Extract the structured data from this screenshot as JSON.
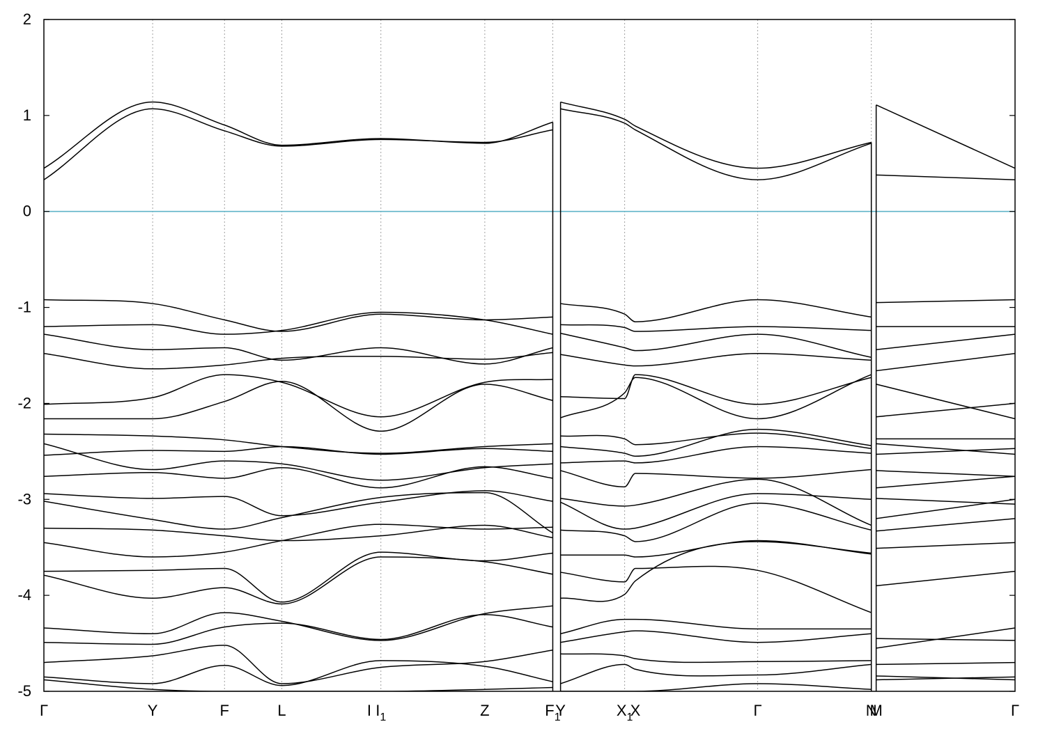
{
  "chart_data": {
    "type": "line",
    "title": "",
    "xlabel": "",
    "ylabel": "",
    "ylim": [
      -5,
      2
    ],
    "yticks": [
      -5,
      -4,
      -3,
      -2,
      -1,
      0,
      1,
      2
    ],
    "grid": "vertical dotted lines at high-symmetry points",
    "fermi_level": {
      "value": 0,
      "color": "#5fb4c8"
    },
    "line_color": "#000000",
    "kpoints": [
      {
        "x": 0.0,
        "label": "Γ",
        "sub": ""
      },
      {
        "x": 0.112,
        "label": "Y",
        "sub": ""
      },
      {
        "x": 0.186,
        "label": "F",
        "sub": ""
      },
      {
        "x": 0.245,
        "label": "L",
        "sub": ""
      },
      {
        "x": 0.335,
        "label": "I",
        "sub": ""
      },
      {
        "x": 0.347,
        "label": "I",
        "sub": "1"
      },
      {
        "x": 0.454,
        "label": "Z",
        "sub": ""
      },
      {
        "x": 0.524,
        "label": "F",
        "sub": "1"
      },
      {
        "x": 0.532,
        "label": "Y",
        "sub": ""
      },
      {
        "x": 0.598,
        "label": "X",
        "sub": "1"
      },
      {
        "x": 0.609,
        "label": "X",
        "sub": ""
      },
      {
        "x": 0.735,
        "label": "Γ",
        "sub": ""
      },
      {
        "x": 0.852,
        "label": "N",
        "sub": ""
      },
      {
        "x": 0.857,
        "label": "M",
        "sub": ""
      },
      {
        "x": 1.0,
        "label": "Γ",
        "sub": ""
      }
    ],
    "gridlines_x": [
      0.112,
      0.186,
      0.245,
      0.347,
      0.454,
      0.524,
      0.598,
      0.735,
      0.852
    ],
    "segments": [
      {
        "x": [
          0,
          0.112,
          0.186,
          0.245,
          0.347,
          0.454,
          0.524
        ],
        "bands": [
          [
            0.45,
            1.14,
            0.9,
            0.69,
            0.76,
            0.71,
            0.93
          ],
          [
            0.33,
            1.07,
            0.84,
            0.68,
            0.75,
            0.72,
            0.85
          ],
          [
            -0.92,
            -0.96,
            -1.13,
            -1.25,
            -1.07,
            -1.13,
            -1.1
          ],
          [
            -1.2,
            -1.18,
            -1.28,
            -1.24,
            -1.05,
            -1.13,
            -1.28
          ],
          [
            -1.28,
            -1.44,
            -1.42,
            -1.55,
            -1.42,
            -1.59,
            -1.42
          ],
          [
            -1.48,
            -1.64,
            -1.6,
            -1.53,
            -1.51,
            -1.54,
            -1.47
          ],
          [
            -2.01,
            -1.94,
            -1.7,
            -1.78,
            -2.14,
            -1.78,
            -1.75
          ],
          [
            -2.16,
            -2.16,
            -1.98,
            -1.77,
            -2.29,
            -1.8,
            -1.97
          ],
          [
            -2.32,
            -2.34,
            -2.38,
            -2.45,
            -2.52,
            -2.45,
            -2.42
          ],
          [
            -2.42,
            -2.69,
            -2.6,
            -2.63,
            -2.8,
            -2.67,
            -2.63
          ],
          [
            -2.54,
            -2.49,
            -2.5,
            -2.45,
            -2.53,
            -2.47,
            -2.5
          ],
          [
            -2.76,
            -2.72,
            -2.78,
            -2.67,
            -2.88,
            -2.66,
            -2.78
          ],
          [
            -2.94,
            -2.99,
            -2.97,
            -3.17,
            -3.03,
            -2.91,
            -3.02
          ],
          [
            -3.02,
            -3.21,
            -3.31,
            -3.19,
            -2.98,
            -2.93,
            -3.35
          ],
          [
            -3.3,
            -3.32,
            -3.38,
            -3.43,
            -3.38,
            -3.27,
            -3.4
          ],
          [
            -3.45,
            -3.6,
            -3.55,
            -3.43,
            -3.26,
            -3.31,
            -3.29
          ],
          [
            -3.75,
            -3.74,
            -3.72,
            -4.07,
            -3.55,
            -3.64,
            -3.56
          ],
          [
            -3.79,
            -4.03,
            -3.92,
            -4.09,
            -3.6,
            -3.65,
            -3.78
          ],
          [
            -4.34,
            -4.4,
            -4.18,
            -4.27,
            -4.47,
            -4.19,
            -4.11
          ],
          [
            -4.49,
            -4.51,
            -4.33,
            -4.29,
            -4.46,
            -4.2,
            -4.33
          ],
          [
            -4.7,
            -4.63,
            -4.52,
            -4.92,
            -4.75,
            -4.69,
            -4.57
          ],
          [
            -4.85,
            -4.92,
            -4.73,
            -4.94,
            -4.68,
            -4.74,
            -4.9
          ],
          [
            -4.88,
            -4.98,
            -5.0,
            -5.0,
            -5.0,
            -4.98,
            -4.96
          ]
        ]
      },
      {
        "x": [
          0.532,
          0.598,
          0.609,
          0.735,
          0.852
        ],
        "bands": [
          [
            1.14,
            0.96,
            0.89,
            0.45,
            0.72
          ],
          [
            1.07,
            0.92,
            0.85,
            0.33,
            0.71
          ],
          [
            -0.96,
            -1.07,
            -1.15,
            -0.92,
            -1.1
          ],
          [
            -1.18,
            -1.21,
            -1.25,
            -1.2,
            -1.24
          ],
          [
            -1.27,
            -1.42,
            -1.45,
            -1.28,
            -1.52
          ],
          [
            -1.49,
            -1.6,
            -1.61,
            -1.48,
            -1.55
          ],
          [
            -1.93,
            -1.95,
            -1.7,
            -2.01,
            -1.73
          ],
          [
            -2.15,
            -1.89,
            -1.73,
            -2.16,
            -1.7
          ],
          [
            -2.34,
            -2.37,
            -2.43,
            -2.31,
            -2.47
          ],
          [
            -2.62,
            -2.6,
            -2.62,
            -2.45,
            -2.52
          ],
          [
            -2.45,
            -2.52,
            -2.55,
            -2.27,
            -2.44
          ],
          [
            -2.7,
            -2.87,
            -2.73,
            -2.78,
            -2.69
          ],
          [
            -2.99,
            -3.07,
            -3.06,
            -2.79,
            -3.27
          ],
          [
            -3.03,
            -3.31,
            -3.3,
            -2.94,
            -3.0
          ],
          [
            -3.32,
            -3.38,
            -3.44,
            -3.04,
            -3.32
          ],
          [
            -3.58,
            -3.58,
            -3.6,
            -3.43,
            -3.57
          ],
          [
            -3.76,
            -3.86,
            -3.72,
            -3.74,
            -4.18
          ],
          [
            -4.03,
            -3.99,
            -3.85,
            -3.44,
            -3.56
          ],
          [
            -4.4,
            -4.25,
            -4.25,
            -4.35,
            -4.35
          ],
          [
            -4.49,
            -4.38,
            -4.37,
            -4.49,
            -4.4
          ],
          [
            -4.61,
            -4.63,
            -4.66,
            -4.69,
            -4.68
          ],
          [
            -4.92,
            -4.72,
            -4.77,
            -4.83,
            -4.72
          ],
          [
            -5.0,
            -5.0,
            -5.0,
            -4.92,
            -4.98
          ]
        ]
      },
      {
        "x": [
          0.857,
          1.0
        ],
        "bands": [
          [
            1.11,
            0.45
          ],
          [
            0.38,
            0.33
          ],
          [
            -0.95,
            -0.92
          ],
          [
            -1.2,
            -1.2
          ],
          [
            -1.44,
            -1.28
          ],
          [
            -1.66,
            -1.48
          ],
          [
            -2.14,
            -2.0
          ],
          [
            -1.8,
            -2.16
          ],
          [
            -2.37,
            -2.37
          ],
          [
            -2.53,
            -2.47
          ],
          [
            -2.42,
            -2.53
          ],
          [
            -2.7,
            -2.76
          ],
          [
            -2.88,
            -2.76
          ],
          [
            -2.99,
            -3.05
          ],
          [
            -3.2,
            -3.0
          ],
          [
            -3.51,
            -3.45
          ],
          [
            -3.9,
            -3.75
          ],
          [
            -3.33,
            -3.2
          ],
          [
            -4.55,
            -4.34
          ],
          [
            -4.45,
            -4.47
          ],
          [
            -4.72,
            -4.7
          ],
          [
            -4.88,
            -4.85
          ],
          [
            -4.84,
            -4.88
          ]
        ]
      }
    ]
  }
}
